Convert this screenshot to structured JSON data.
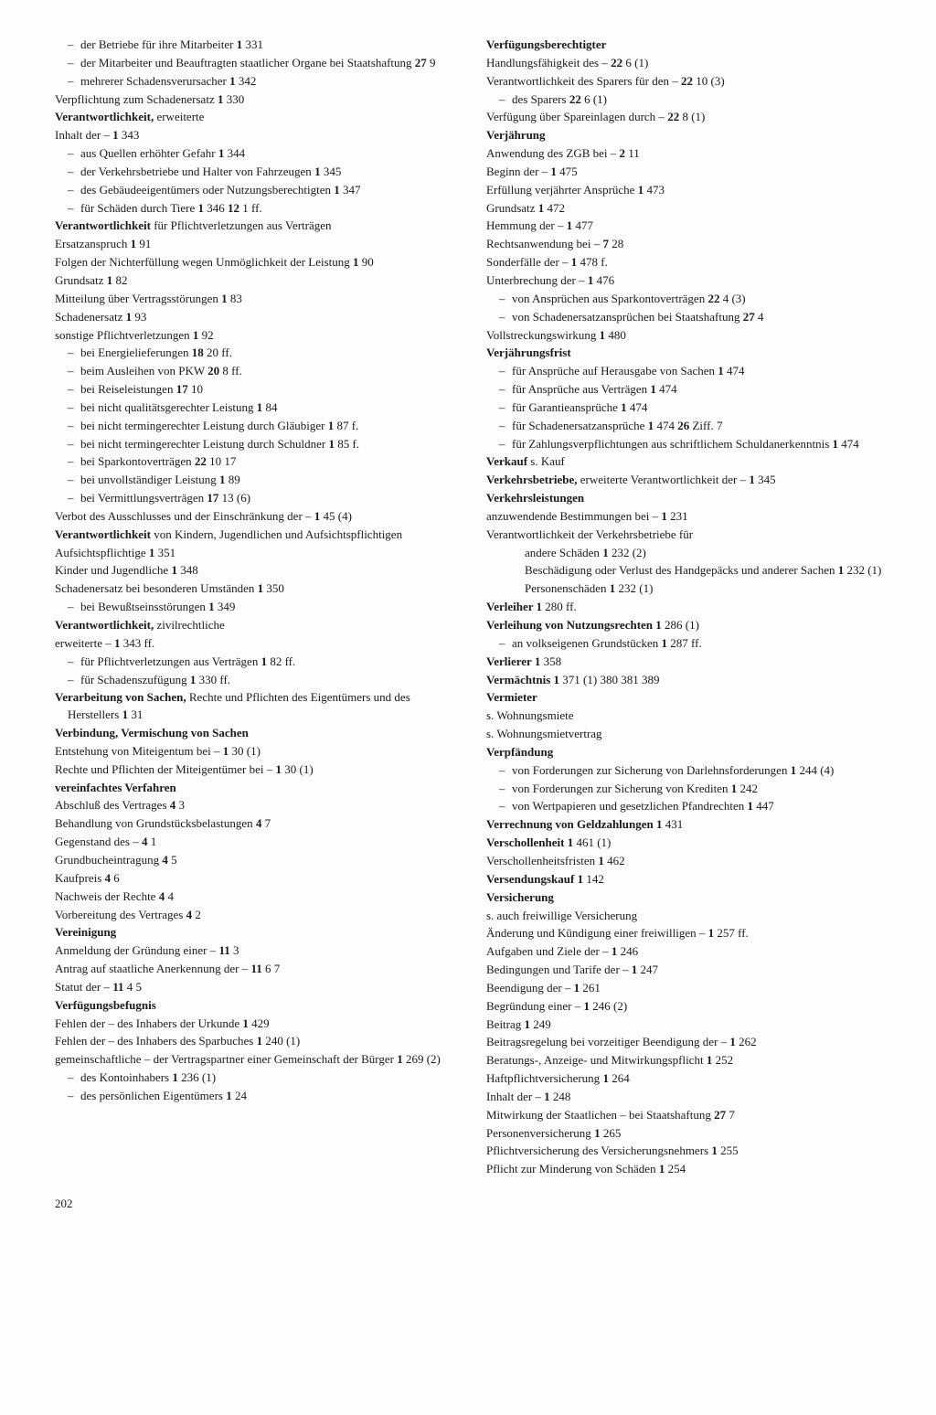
{
  "pageNumber": "202",
  "left": [
    {
      "t": "sub dash",
      "parts": [
        "der Betriebe für ihre Mitarbeiter  ",
        [
          "b",
          "1"
        ],
        " 331"
      ]
    },
    {
      "t": "sub dash",
      "parts": [
        "der Mitarbeiter und Beauftragten staatlicher Organe bei Staatshaftung  ",
        [
          "b",
          "27"
        ],
        " 9"
      ]
    },
    {
      "t": "sub dash",
      "parts": [
        "mehrerer Schadensverursacher  ",
        [
          "b",
          "1"
        ],
        " 342"
      ]
    },
    {
      "t": "entry",
      "parts": [
        "Verpflichtung zum Schadenersatz  ",
        [
          "b",
          "1"
        ],
        " 330"
      ]
    },
    {
      "t": "entry",
      "parts": [
        [
          "b",
          "Verantwortlichkeit,"
        ],
        " erweiterte"
      ]
    },
    {
      "t": "entry",
      "parts": [
        "Inhalt der –  ",
        [
          "b",
          "1"
        ],
        " 343"
      ]
    },
    {
      "t": "sub dash",
      "parts": [
        "aus Quellen erhöhter Gefahr  ",
        [
          "b",
          "1"
        ],
        " 344"
      ]
    },
    {
      "t": "sub dash",
      "parts": [
        "der Verkehrsbetriebe und Halter von Fahrzeugen  ",
        [
          "b",
          "1"
        ],
        " 345"
      ]
    },
    {
      "t": "sub dash",
      "parts": [
        "des Gebäudeeigentümers oder Nutzungsberechtigten  ",
        [
          "b",
          "1"
        ],
        " 347"
      ]
    },
    {
      "t": "sub dash",
      "parts": [
        "für Schäden durch Tiere  ",
        [
          "b",
          "1"
        ],
        " 346  ",
        [
          "b",
          "12"
        ],
        " 1 ff."
      ]
    },
    {
      "t": "entry",
      "parts": [
        [
          "b",
          "Verantwortlichkeit"
        ],
        " für Pflichtverletzungen aus Verträgen"
      ]
    },
    {
      "t": "entry",
      "parts": [
        "Ersatzanspruch  ",
        [
          "b",
          "1"
        ],
        " 91"
      ]
    },
    {
      "t": "entry",
      "parts": [
        "Folgen der Nichterfüllung wegen Unmöglichkeit der Leistung  ",
        [
          "b",
          "1"
        ],
        " 90"
      ]
    },
    {
      "t": "entry",
      "parts": [
        "Grundsatz  ",
        [
          "b",
          "1"
        ],
        " 82"
      ]
    },
    {
      "t": "entry",
      "parts": [
        "Mitteilung über Vertragsstörungen  ",
        [
          "b",
          "1"
        ],
        " 83"
      ]
    },
    {
      "t": "entry",
      "parts": [
        "Schadenersatz  ",
        [
          "b",
          "1"
        ],
        " 93"
      ]
    },
    {
      "t": "entry",
      "parts": [
        "sonstige Pflichtverletzungen  ",
        [
          "b",
          "1"
        ],
        " 92"
      ]
    },
    {
      "t": "sub dash",
      "parts": [
        "bei Energielieferungen  ",
        [
          "b",
          "18"
        ],
        " 20 ff."
      ]
    },
    {
      "t": "sub dash",
      "parts": [
        "beim Ausleihen von PKW  ",
        [
          "b",
          "20"
        ],
        " 8 ff."
      ]
    },
    {
      "t": "sub dash",
      "parts": [
        "bei Reiseleistungen  ",
        [
          "b",
          "17"
        ],
        " 10"
      ]
    },
    {
      "t": "sub dash",
      "parts": [
        "bei nicht qualitätsgerechter Leistung  ",
        [
          "b",
          "1"
        ],
        " 84"
      ]
    },
    {
      "t": "sub dash",
      "parts": [
        "bei nicht termingerechter Leistung durch Gläubiger  ",
        [
          "b",
          "1"
        ],
        " 87 f."
      ]
    },
    {
      "t": "sub dash",
      "parts": [
        "bei nicht termingerechter Leistung durch Schuldner  ",
        [
          "b",
          "1"
        ],
        " 85 f."
      ]
    },
    {
      "t": "sub dash",
      "parts": [
        "bei Sparkontoverträgen  ",
        [
          "b",
          "22"
        ],
        " 10 17"
      ]
    },
    {
      "t": "sub dash",
      "parts": [
        "bei unvollständiger Leistung  ",
        [
          "b",
          "1"
        ],
        " 89"
      ]
    },
    {
      "t": "sub dash",
      "parts": [
        "bei Vermittlungsverträgen  ",
        [
          "b",
          "17"
        ],
        " 13 (6)"
      ]
    },
    {
      "t": "entry",
      "parts": [
        "Verbot des Ausschlusses und der Einschränkung der –  ",
        [
          "b",
          "1"
        ],
        " 45 (4)"
      ]
    },
    {
      "t": "entry",
      "parts": [
        [
          "b",
          "Verantwortlichkeit"
        ],
        " von Kindern, Jugendlichen und Aufsichtspflichtigen"
      ]
    },
    {
      "t": "entry",
      "parts": [
        "Aufsichtspflichtige  ",
        [
          "b",
          "1"
        ],
        " 351"
      ]
    },
    {
      "t": "entry",
      "parts": [
        "Kinder und Jugendliche  ",
        [
          "b",
          "1"
        ],
        " 348"
      ]
    },
    {
      "t": "entry",
      "parts": [
        "Schadenersatz bei besonderen Umständen  ",
        [
          "b",
          "1"
        ],
        " 350"
      ]
    },
    {
      "t": "sub dash",
      "parts": [
        "bei Bewußtseinsstörungen  ",
        [
          "b",
          "1"
        ],
        " 349"
      ]
    },
    {
      "t": "entry",
      "parts": [
        [
          "b",
          "Verantwortlichkeit,"
        ],
        " zivilrechtliche"
      ]
    },
    {
      "t": "entry",
      "parts": [
        "erweiterte –  ",
        [
          "b",
          "1"
        ],
        " 343 ff."
      ]
    },
    {
      "t": "sub dash",
      "parts": [
        "für Pflichtverletzungen aus Verträgen  ",
        [
          "b",
          "1"
        ],
        " 82 ff."
      ]
    },
    {
      "t": "sub dash",
      "parts": [
        "für Schadenszufügung  ",
        [
          "b",
          "1"
        ],
        " 330 ff."
      ]
    },
    {
      "t": "entry",
      "parts": [
        [
          "b",
          "Verarbeitung von Sachen,"
        ],
        " Rechte und Pflichten des Eigentümers und des Herstellers  ",
        [
          "b",
          "1"
        ],
        " 31"
      ]
    },
    {
      "t": "entry",
      "parts": [
        [
          "b",
          "Verbindung, Vermischung von Sachen"
        ]
      ]
    },
    {
      "t": "entry",
      "parts": [
        "Entstehung von Miteigentum bei –  ",
        [
          "b",
          "1"
        ],
        " 30 (1)"
      ]
    },
    {
      "t": "entry",
      "parts": [
        "Rechte und Pflichten der Miteigentümer bei –  ",
        [
          "b",
          "1"
        ],
        " 30 (1)"
      ]
    },
    {
      "t": "entry",
      "parts": [
        [
          "b",
          "vereinfachtes Verfahren"
        ]
      ]
    },
    {
      "t": "entry",
      "parts": [
        "Abschluß des Vertrages  ",
        [
          "b",
          "4"
        ],
        " 3"
      ]
    },
    {
      "t": "entry",
      "parts": [
        "Behandlung von Grundstücksbelastungen  ",
        [
          "b",
          "4"
        ],
        " 7"
      ]
    },
    {
      "t": "entry",
      "parts": [
        "Gegenstand des –  ",
        [
          "b",
          "4"
        ],
        " 1"
      ]
    },
    {
      "t": "entry",
      "parts": [
        "Grundbucheintragung  ",
        [
          "b",
          "4"
        ],
        " 5"
      ]
    },
    {
      "t": "entry",
      "parts": [
        "Kaufpreis  ",
        [
          "b",
          "4"
        ],
        " 6"
      ]
    },
    {
      "t": "entry",
      "parts": [
        "Nachweis der Rechte  ",
        [
          "b",
          "4"
        ],
        " 4"
      ]
    },
    {
      "t": "entry",
      "parts": [
        "Vorbereitung des Vertrages  ",
        [
          "b",
          "4"
        ],
        " 2"
      ]
    },
    {
      "t": "entry",
      "parts": [
        [
          "b",
          "Vereinigung"
        ]
      ]
    },
    {
      "t": "entry",
      "parts": [
        "Anmeldung der Gründung einer –  ",
        [
          "b",
          "11"
        ],
        " 3"
      ]
    },
    {
      "t": "entry",
      "parts": [
        "Antrag auf staatliche Anerkennung der –  ",
        [
          "b",
          "11"
        ],
        " 6 7"
      ]
    },
    {
      "t": "entry",
      "parts": [
        "Statut der –  ",
        [
          "b",
          "11"
        ],
        " 4 5"
      ]
    },
    {
      "t": "entry",
      "parts": [
        [
          "b",
          "Verfügungsbefugnis"
        ]
      ]
    },
    {
      "t": "entry",
      "parts": [
        "Fehlen der – des Inhabers der Urkunde  ",
        [
          "b",
          "1"
        ],
        " 429"
      ]
    },
    {
      "t": "entry",
      "parts": [
        "Fehlen der – des Inhabers des Sparbuches  ",
        [
          "b",
          "1"
        ],
        " 240 (1)"
      ]
    },
    {
      "t": "entry",
      "parts": [
        "gemeinschaftliche – der Vertragspartner einer Gemeinschaft der Bürger  ",
        [
          "b",
          "1"
        ],
        " 269 (2)"
      ]
    },
    {
      "t": "sub dash",
      "parts": [
        "des Kontoinhabers  ",
        [
          "b",
          "1"
        ],
        " 236 (1)"
      ]
    },
    {
      "t": "sub dash",
      "parts": [
        "des persönlichen Eigentümers  ",
        [
          "b",
          "1"
        ],
        " 24"
      ]
    }
  ],
  "right": [
    {
      "t": "entry",
      "parts": [
        [
          "b",
          "Verfügungsberechtigter"
        ]
      ]
    },
    {
      "t": "entry",
      "parts": [
        "Handlungsfähigkeit des –  ",
        [
          "b",
          "22"
        ],
        " 6 (1)"
      ]
    },
    {
      "t": "entry",
      "parts": [
        "Verantwortlichkeit des Sparers für den –  ",
        [
          "b",
          "22"
        ],
        " 10 (3)"
      ]
    },
    {
      "t": "sub dash",
      "parts": [
        "des Sparers  ",
        [
          "b",
          "22"
        ],
        " 6 (1)"
      ]
    },
    {
      "t": "entry",
      "parts": [
        "Verfügung über Spareinlagen durch –  ",
        [
          "b",
          "22"
        ],
        " 8 (1)"
      ]
    },
    {
      "t": "entry",
      "parts": [
        [
          "b",
          "Verjährung"
        ]
      ]
    },
    {
      "t": "entry",
      "parts": [
        "Anwendung des ZGB bei –  ",
        [
          "b",
          "2"
        ],
        " 11"
      ]
    },
    {
      "t": "entry",
      "parts": [
        "Beginn der –  ",
        [
          "b",
          "1"
        ],
        " 475"
      ]
    },
    {
      "t": "entry",
      "parts": [
        "Erfüllung verjährter Ansprüche  ",
        [
          "b",
          "1"
        ],
        " 473"
      ]
    },
    {
      "t": "entry",
      "parts": [
        "Grundsatz  ",
        [
          "b",
          "1"
        ],
        " 472"
      ]
    },
    {
      "t": "entry",
      "parts": [
        "Hemmung der –  ",
        [
          "b",
          "1"
        ],
        " 477"
      ]
    },
    {
      "t": "entry",
      "parts": [
        "Rechtsanwendung bei –  ",
        [
          "b",
          "7"
        ],
        " 28"
      ]
    },
    {
      "t": "entry",
      "parts": [
        "Sonderfälle der –  ",
        [
          "b",
          "1"
        ],
        " 478 f."
      ]
    },
    {
      "t": "entry",
      "parts": [
        "Unterbrechung der –  ",
        [
          "b",
          "1"
        ],
        " 476"
      ]
    },
    {
      "t": "sub dash",
      "parts": [
        "von Ansprüchen aus Sparkontoverträgen  ",
        [
          "b",
          "22"
        ],
        " 4 (3)"
      ]
    },
    {
      "t": "sub dash",
      "parts": [
        "von Schadenersatzansprüchen bei Staatshaftung  ",
        [
          "b",
          "27"
        ],
        " 4"
      ]
    },
    {
      "t": "entry",
      "parts": [
        "Vollstreckungswirkung  ",
        [
          "b",
          "1"
        ],
        " 480"
      ]
    },
    {
      "t": "entry",
      "parts": [
        [
          "b",
          "Verjährungsfrist"
        ]
      ]
    },
    {
      "t": "sub dash",
      "parts": [
        "für Ansprüche auf Herausgabe von Sachen  ",
        [
          "b",
          "1"
        ],
        " 474"
      ]
    },
    {
      "t": "sub dash",
      "parts": [
        "für Ansprüche aus Verträgen  ",
        [
          "b",
          "1"
        ],
        " 474"
      ]
    },
    {
      "t": "sub dash",
      "parts": [
        "für Garantieansprüche  ",
        [
          "b",
          "1"
        ],
        " 474"
      ]
    },
    {
      "t": "sub dash",
      "parts": [
        "für Schadenersatzansprüche  ",
        [
          "b",
          "1"
        ],
        " 474  ",
        [
          "b",
          "26"
        ],
        " Ziff. 7"
      ]
    },
    {
      "t": "sub dash",
      "parts": [
        "für Zahlungsverpflichtungen aus schriftlichem Schuldanerkenntnis  ",
        [
          "b",
          "1"
        ],
        " 474"
      ]
    },
    {
      "t": "entry",
      "parts": [
        [
          "b",
          "Verkauf"
        ],
        " s. Kauf"
      ]
    },
    {
      "t": "entry",
      "parts": [
        [
          "b",
          "Verkehrsbetriebe,"
        ],
        " erweiterte Verantwortlichkeit der –  ",
        [
          "b",
          "1"
        ],
        " 345"
      ]
    },
    {
      "t": "entry",
      "parts": [
        [
          "b",
          "Verkehrsleistungen"
        ]
      ]
    },
    {
      "t": "entry",
      "parts": [
        "anzuwendende Bestimmungen bei –  ",
        [
          "b",
          "1"
        ],
        " 231"
      ]
    },
    {
      "t": "entry",
      "parts": [
        "Verantwortlichkeit der Verkehrsbetriebe für"
      ]
    },
    {
      "t": "subsub",
      "parts": [
        "andere Schäden  ",
        [
          "b",
          "1"
        ],
        " 232 (2)"
      ]
    },
    {
      "t": "subsub",
      "parts": [
        "Beschädigung oder Verlust des Handgepäcks und anderer Sachen  ",
        [
          "b",
          "1"
        ],
        " 232 (1)"
      ]
    },
    {
      "t": "subsub",
      "parts": [
        "Personenschäden  ",
        [
          "b",
          "1"
        ],
        " 232 (1)"
      ]
    },
    {
      "t": "entry",
      "parts": [
        [
          "b",
          "Verleiher  1"
        ],
        " 280 ff."
      ]
    },
    {
      "t": "entry",
      "parts": [
        [
          "b",
          "Verleihung von Nutzungsrechten  1"
        ],
        " 286 (1)"
      ]
    },
    {
      "t": "sub dash",
      "parts": [
        "an volkseigenen Grundstücken  ",
        [
          "b",
          "1"
        ],
        " 287 ff."
      ]
    },
    {
      "t": "entry",
      "parts": [
        [
          "b",
          "Verlierer  1"
        ],
        " 358"
      ]
    },
    {
      "t": "entry",
      "parts": [
        [
          "b",
          "Vermächtnis  1"
        ],
        " 371 (1) 380 381 389"
      ]
    },
    {
      "t": "entry",
      "parts": [
        [
          "b",
          "Vermieter"
        ]
      ]
    },
    {
      "t": "entry",
      "parts": [
        "s. Wohnungsmiete"
      ]
    },
    {
      "t": "entry",
      "parts": [
        "s. Wohnungsmietvertrag"
      ]
    },
    {
      "t": "entry",
      "parts": [
        [
          "b",
          "Verpfändung"
        ]
      ]
    },
    {
      "t": "sub dash",
      "parts": [
        "von Forderungen zur Sicherung von Darlehnsforderungen  ",
        [
          "b",
          "1"
        ],
        " 244 (4)"
      ]
    },
    {
      "t": "sub dash",
      "parts": [
        "von Forderungen zur Sicherung von Krediten  ",
        [
          "b",
          "1"
        ],
        " 242"
      ]
    },
    {
      "t": "sub dash",
      "parts": [
        "von Wertpapieren und gesetzlichen Pfandrechten  ",
        [
          "b",
          "1"
        ],
        " 447"
      ]
    },
    {
      "t": "entry",
      "parts": [
        [
          "b",
          "Verrechnung von Geldzahlungen  1"
        ],
        " 431"
      ]
    },
    {
      "t": "entry",
      "parts": [
        [
          "b",
          "Verschollenheit  1"
        ],
        " 461 (1)"
      ]
    },
    {
      "t": "entry",
      "parts": [
        "Verschollenheitsfristen  ",
        [
          "b",
          "1"
        ],
        " 462"
      ]
    },
    {
      "t": "entry",
      "parts": [
        [
          "b",
          "Versendungskauf  1"
        ],
        " 142"
      ]
    },
    {
      "t": "entry",
      "parts": [
        [
          "b",
          "Versicherung"
        ]
      ]
    },
    {
      "t": "entry",
      "parts": [
        "s. auch freiwillige Versicherung"
      ]
    },
    {
      "t": "entry",
      "parts": [
        "Änderung und Kündigung einer freiwilligen –  ",
        [
          "b",
          "1"
        ],
        " 257 ff."
      ]
    },
    {
      "t": "entry",
      "parts": [
        "Aufgaben und Ziele der –  ",
        [
          "b",
          "1"
        ],
        " 246"
      ]
    },
    {
      "t": "entry",
      "parts": [
        "Bedingungen und Tarife der –  ",
        [
          "b",
          "1"
        ],
        " 247"
      ]
    },
    {
      "t": "entry",
      "parts": [
        "Beendigung der –  ",
        [
          "b",
          "1"
        ],
        " 261"
      ]
    },
    {
      "t": "entry",
      "parts": [
        "Begründung einer –  ",
        [
          "b",
          "1"
        ],
        " 246 (2)"
      ]
    },
    {
      "t": "entry",
      "parts": [
        "Beitrag  ",
        [
          "b",
          "1"
        ],
        " 249"
      ]
    },
    {
      "t": "entry",
      "parts": [
        "Beitragsregelung bei vorzeitiger Beendigung der –  ",
        [
          "b",
          "1"
        ],
        " 262"
      ]
    },
    {
      "t": "entry",
      "parts": [
        "Beratungs-, Anzeige- und Mitwirkungspflicht  ",
        [
          "b",
          "1"
        ],
        " 252"
      ]
    },
    {
      "t": "entry",
      "parts": [
        "Haftpflichtversicherung  ",
        [
          "b",
          "1"
        ],
        " 264"
      ]
    },
    {
      "t": "entry",
      "parts": [
        "Inhalt der –  ",
        [
          "b",
          "1"
        ],
        " 248"
      ]
    },
    {
      "t": "entry",
      "parts": [
        "Mitwirkung der Staatlichen – bei Staatshaftung  ",
        [
          "b",
          "27"
        ],
        " 7"
      ]
    },
    {
      "t": "entry",
      "parts": [
        "Personenversicherung  ",
        [
          "b",
          "1"
        ],
        " 265"
      ]
    },
    {
      "t": "entry",
      "parts": [
        "Pflichtversicherung des Versicherungsnehmers  ",
        [
          "b",
          "1"
        ],
        " 255"
      ]
    },
    {
      "t": "entry",
      "parts": [
        "Pflicht zur Minderung von Schäden  ",
        [
          "b",
          "1"
        ],
        " 254"
      ]
    }
  ]
}
